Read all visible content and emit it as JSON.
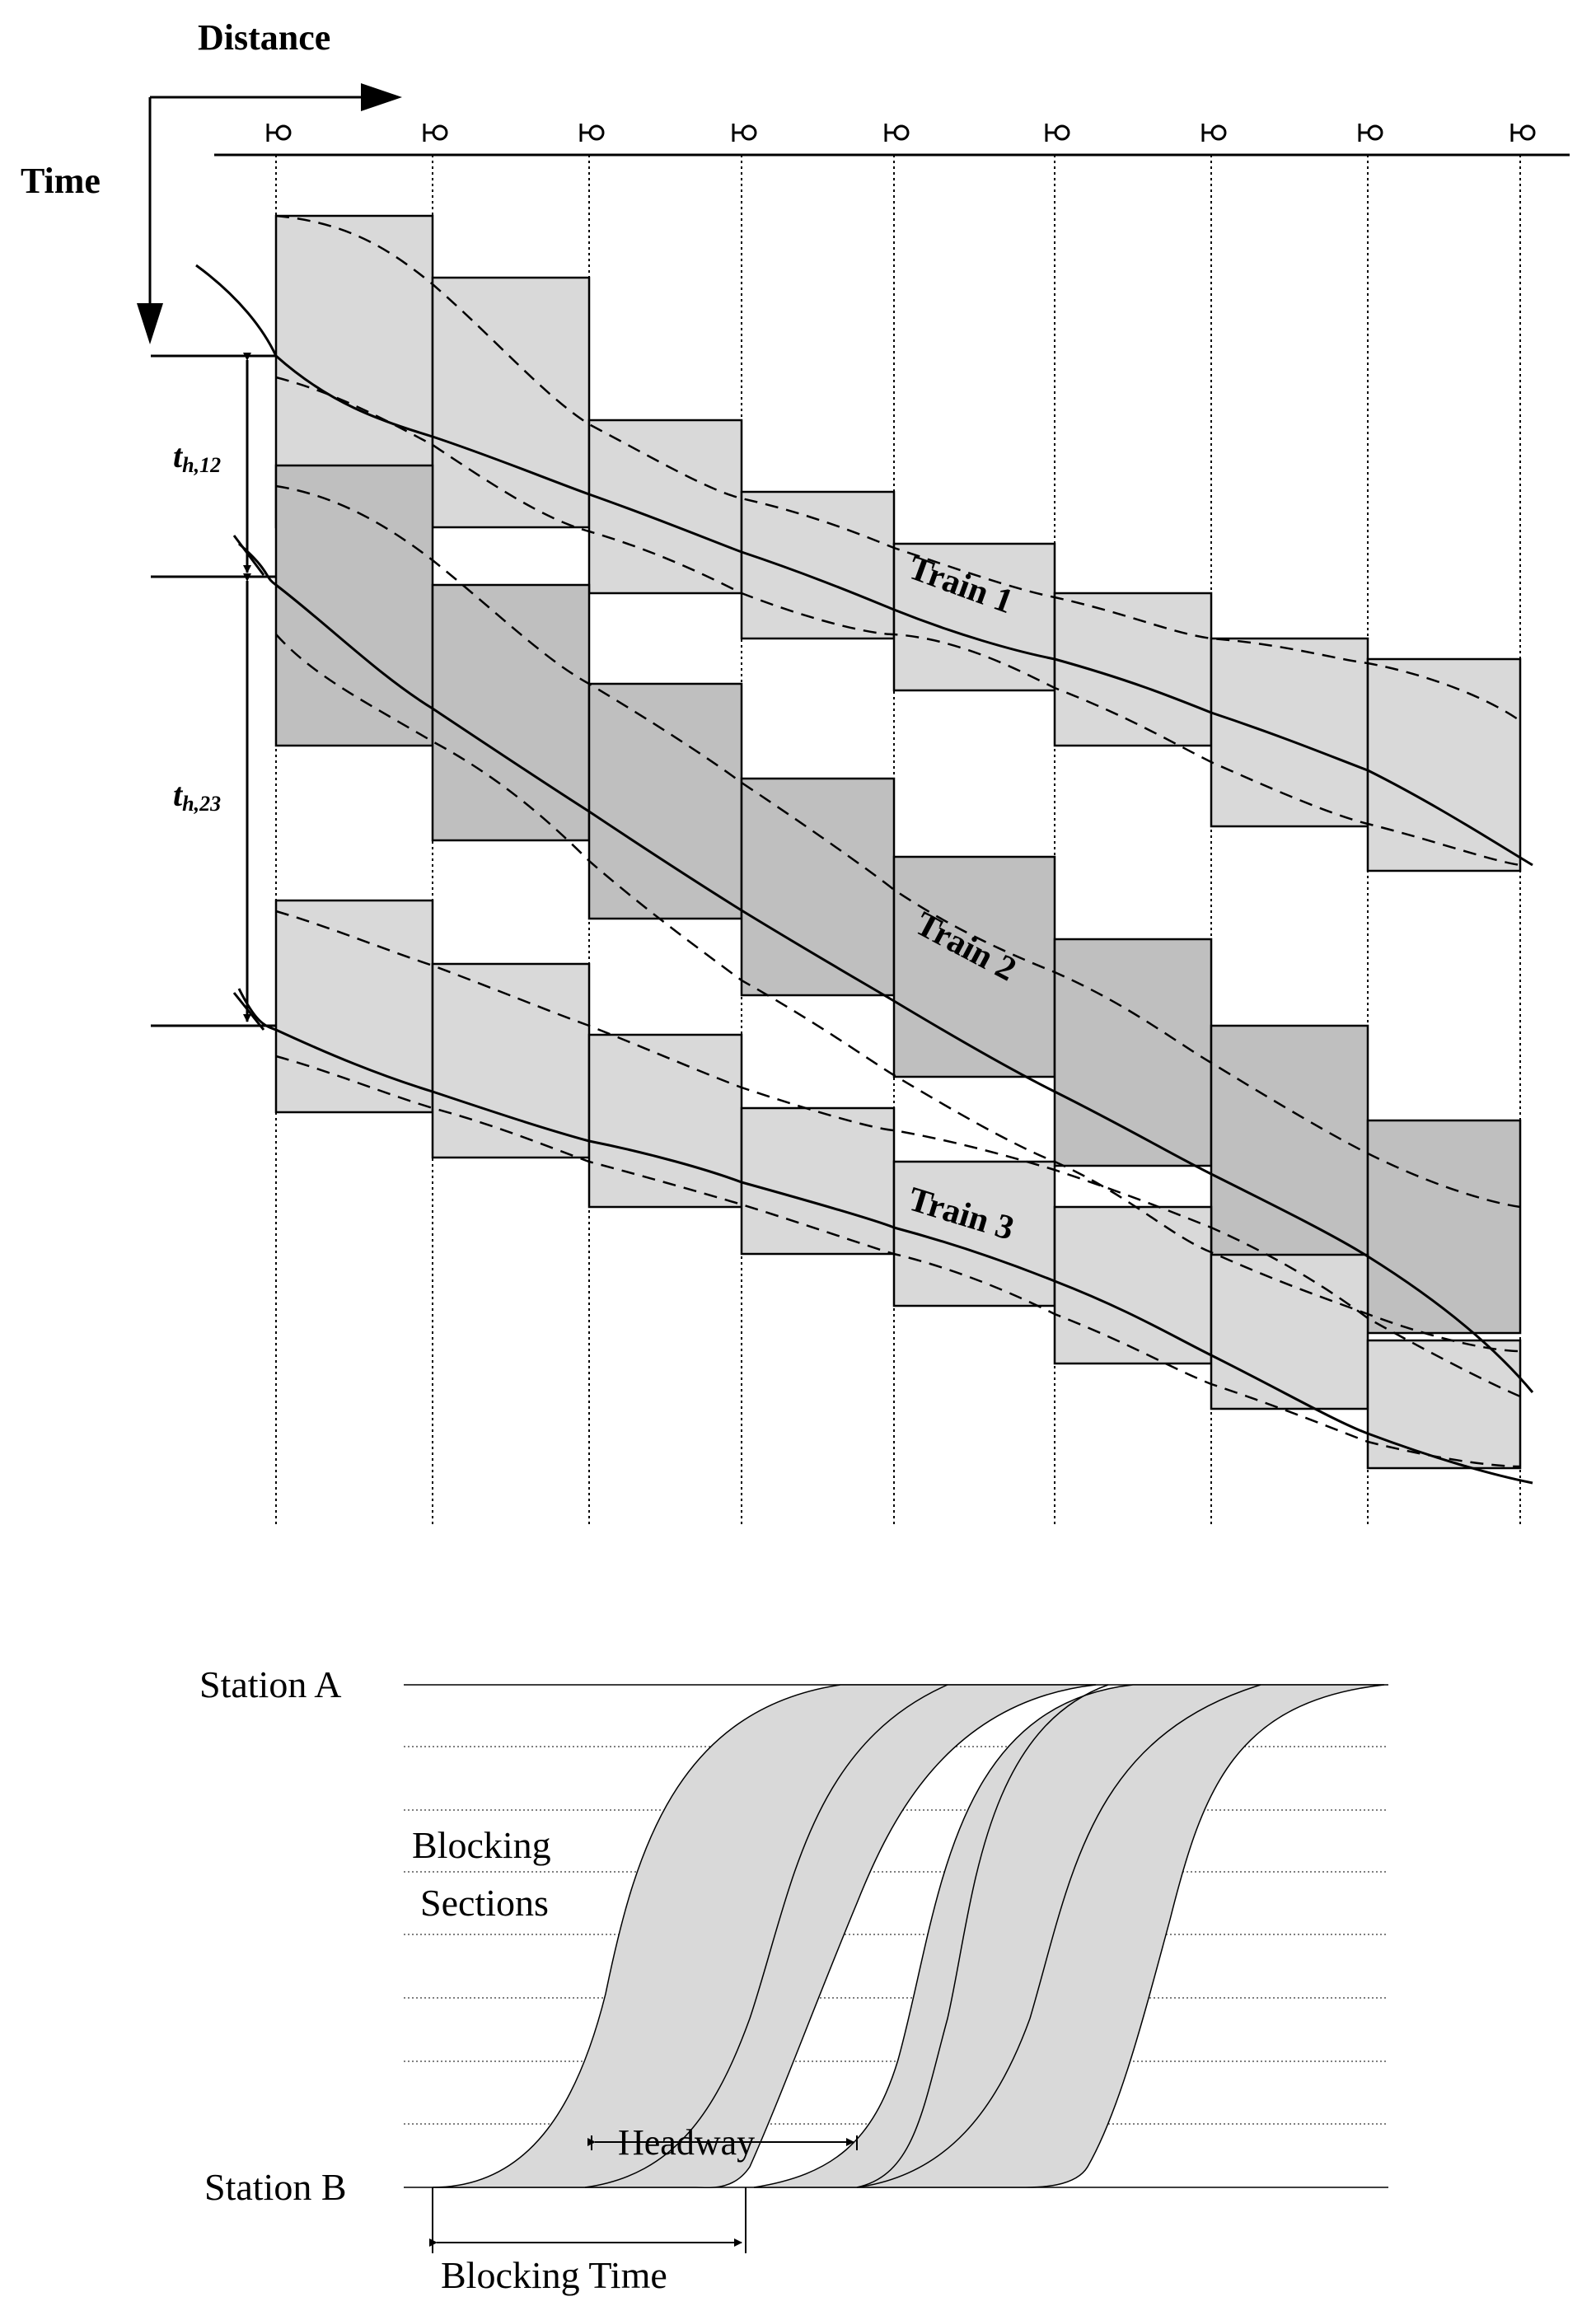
{
  "top_diagram": {
    "distance_label": "Distance",
    "time_label": "Time",
    "headway_12": {
      "main": "t",
      "sub": "h,12"
    },
    "headway_23": {
      "main": "t",
      "sub": "h,23"
    },
    "trains": [
      {
        "id": "train-1",
        "label": "Train 1"
      },
      {
        "id": "train-2",
        "label": "Train 2"
      },
      {
        "id": "train-3",
        "label": "Train 3"
      }
    ],
    "colors": {
      "light_block": "#d9d9d9",
      "dark_block": "#bfbfbf",
      "line": "#000000"
    }
  },
  "bottom_diagram": {
    "station_a": "Station A",
    "station_b": "Station B",
    "blocking_sections_line1": "Blocking",
    "blocking_sections_line2": "Sections",
    "headway": "Headway",
    "blocking_time": "Blocking Time",
    "colors": {
      "band_fill": "#d9d9d9"
    }
  }
}
